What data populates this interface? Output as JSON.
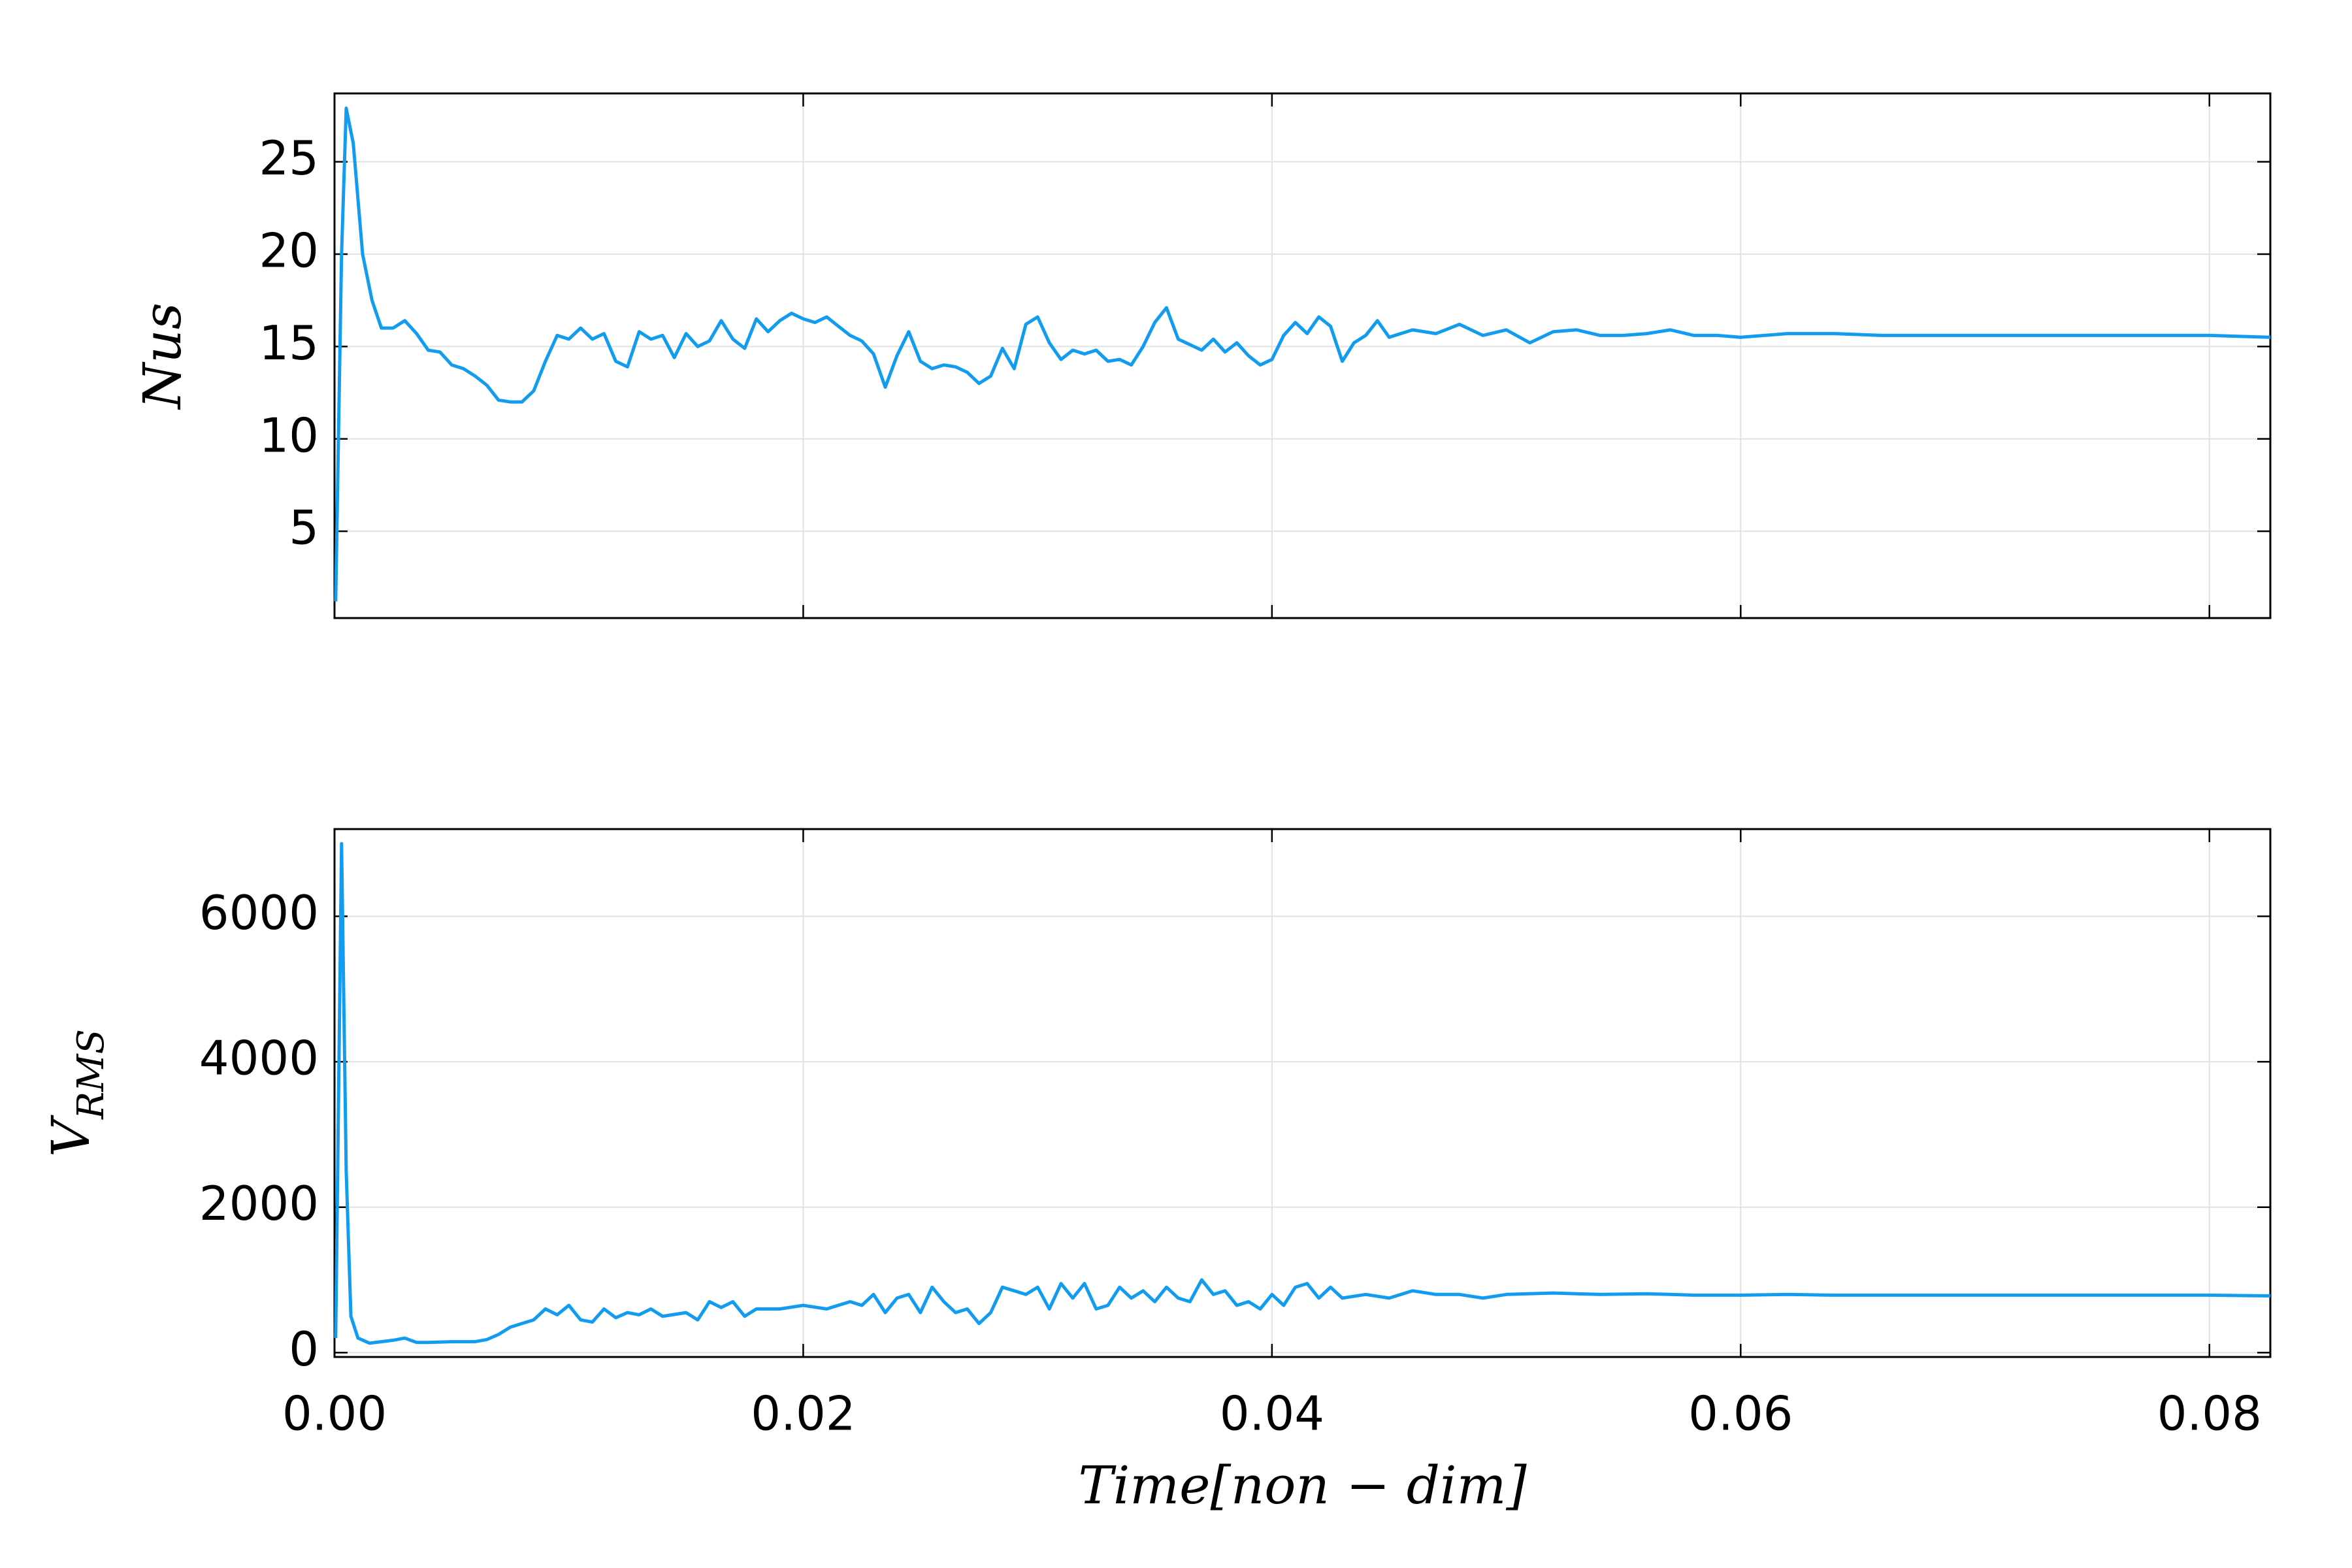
{
  "chart_data": [
    {
      "type": "line",
      "ylabel": "Nus",
      "ylim": [
        0.3,
        28.7
      ],
      "yticks": [
        5,
        10,
        15,
        20,
        25
      ],
      "xlim": [
        0,
        0.0826
      ],
      "xticks": [
        0,
        0.02,
        0.04,
        0.06,
        0.08
      ],
      "show_xtick_labels": false,
      "grid": true,
      "color": "#129cf0",
      "x": [
        5e-05,
        0.0003,
        0.0005,
        0.0008,
        0.0012,
        0.0016,
        0.002,
        0.0025,
        0.003,
        0.0035,
        0.004,
        0.0045,
        0.005,
        0.0055,
        0.006,
        0.0065,
        0.007,
        0.0075,
        0.008,
        0.0085,
        0.009,
        0.0095,
        0.01,
        0.0105,
        0.011,
        0.0115,
        0.012,
        0.0125,
        0.013,
        0.0135,
        0.014,
        0.0145,
        0.015,
        0.0155,
        0.016,
        0.0165,
        0.017,
        0.0175,
        0.018,
        0.0185,
        0.019,
        0.0195,
        0.02,
        0.0205,
        0.021,
        0.0215,
        0.022,
        0.0225,
        0.023,
        0.0235,
        0.024,
        0.0245,
        0.025,
        0.0255,
        0.026,
        0.0265,
        0.027,
        0.0275,
        0.028,
        0.0285,
        0.029,
        0.0295,
        0.03,
        0.0305,
        0.031,
        0.0315,
        0.032,
        0.0325,
        0.033,
        0.0335,
        0.034,
        0.0345,
        0.035,
        0.0355,
        0.036,
        0.0365,
        0.037,
        0.0375,
        0.038,
        0.0385,
        0.039,
        0.0395,
        0.04,
        0.0405,
        0.041,
        0.0415,
        0.042,
        0.0425,
        0.043,
        0.0435,
        0.044,
        0.0445,
        0.045,
        0.046,
        0.047,
        0.048,
        0.049,
        0.05,
        0.051,
        0.052,
        0.053,
        0.054,
        0.055,
        0.056,
        0.057,
        0.058,
        0.059,
        0.06,
        0.062,
        0.064,
        0.066,
        0.068,
        0.07,
        0.072,
        0.074,
        0.076,
        0.078,
        0.08,
        0.0826
      ],
      "values": [
        1.2,
        20,
        27.9,
        26,
        20,
        17.5,
        16,
        16,
        16.4,
        15.7,
        14.8,
        14.7,
        14,
        13.8,
        13.4,
        12.9,
        12.1,
        12,
        12,
        12.6,
        14.2,
        15.6,
        15.4,
        16,
        15.4,
        15.7,
        14.2,
        13.9,
        15.8,
        15.4,
        15.6,
        14.4,
        15.7,
        15,
        15.3,
        16.4,
        15.4,
        14.9,
        16.5,
        15.8,
        16.4,
        16.8,
        16.5,
        16.3,
        16.6,
        16.1,
        15.6,
        15.3,
        14.6,
        12.8,
        14.5,
        15.8,
        14.2,
        13.8,
        14,
        13.9,
        13.6,
        13,
        13.4,
        14.9,
        13.8,
        16.2,
        16.6,
        15.2,
        14.3,
        14.8,
        14.6,
        14.8,
        14.2,
        14.3,
        14,
        15,
        16.3,
        17.1,
        15.4,
        15.1,
        14.8,
        15.4,
        14.7,
        15.2,
        14.5,
        14,
        14.3,
        15.6,
        16.3,
        15.7,
        16.6,
        16.1,
        14.2,
        15.2,
        15.6,
        16.4,
        15.5,
        15.9,
        15.7,
        16.2,
        15.6,
        15.9,
        15.2,
        15.8,
        15.9,
        15.6,
        15.6,
        15.7,
        15.9,
        15.6,
        15.6,
        15.5,
        15.7,
        15.7,
        15.6,
        15.6,
        15.6,
        15.6,
        15.6,
        15.6,
        15.6,
        15.6,
        15.5
      ]
    },
    {
      "type": "line",
      "ylabel": {
        "main": "V",
        "sub": "RMS"
      },
      "xlabel": "Time[non − dim]",
      "ylim": [
        -60,
        7200
      ],
      "yticks": [
        0,
        2000,
        4000,
        6000
      ],
      "xlim": [
        0,
        0.0826
      ],
      "xticks": [
        {
          "value": 0,
          "label": "0.00"
        },
        {
          "value": 0.02,
          "label": "0.02"
        },
        {
          "value": 0.04,
          "label": "0.04"
        },
        {
          "value": 0.06,
          "label": "0.06"
        },
        {
          "value": 0.08,
          "label": "0.08"
        }
      ],
      "show_xtick_labels": true,
      "grid": true,
      "color": "#129cf0",
      "x": [
        5e-05,
        0.0003,
        0.0005,
        0.0007,
        0.001,
        0.0015,
        0.002,
        0.0025,
        0.003,
        0.0035,
        0.004,
        0.005,
        0.006,
        0.0065,
        0.007,
        0.0075,
        0.008,
        0.0085,
        0.009,
        0.0095,
        0.01,
        0.0105,
        0.011,
        0.0115,
        0.012,
        0.0125,
        0.013,
        0.0135,
        0.014,
        0.015,
        0.0155,
        0.016,
        0.0165,
        0.017,
        0.0175,
        0.018,
        0.019,
        0.02,
        0.021,
        0.022,
        0.0225,
        0.023,
        0.0235,
        0.024,
        0.0245,
        0.025,
        0.0255,
        0.026,
        0.0265,
        0.027,
        0.0275,
        0.028,
        0.0285,
        0.029,
        0.0295,
        0.03,
        0.0305,
        0.031,
        0.0315,
        0.032,
        0.0325,
        0.033,
        0.0335,
        0.034,
        0.0345,
        0.035,
        0.0355,
        0.036,
        0.0365,
        0.037,
        0.0375,
        0.038,
        0.0385,
        0.039,
        0.0395,
        0.04,
        0.0405,
        0.041,
        0.0415,
        0.042,
        0.0425,
        0.043,
        0.044,
        0.045,
        0.046,
        0.047,
        0.048,
        0.049,
        0.05,
        0.052,
        0.054,
        0.056,
        0.058,
        0.06,
        0.062,
        0.064,
        0.066,
        0.068,
        0.07,
        0.072,
        0.074,
        0.076,
        0.078,
        0.08,
        0.0826
      ],
      "values": [
        200,
        7000,
        2500,
        500,
        200,
        130,
        150,
        170,
        200,
        140,
        140,
        150,
        150,
        180,
        250,
        350,
        400,
        450,
        600,
        520,
        650,
        450,
        420,
        600,
        480,
        550,
        520,
        600,
        500,
        550,
        450,
        700,
        620,
        700,
        500,
        600,
        600,
        650,
        600,
        700,
        650,
        800,
        550,
        750,
        800,
        550,
        900,
        700,
        550,
        600,
        400,
        550,
        900,
        850,
        800,
        900,
        600,
        950,
        750,
        950,
        600,
        650,
        900,
        750,
        850,
        700,
        900,
        750,
        700,
        1000,
        800,
        850,
        650,
        700,
        600,
        800,
        650,
        900,
        950,
        750,
        900,
        750,
        800,
        750,
        850,
        800,
        800,
        750,
        800,
        820,
        800,
        810,
        790,
        790,
        800,
        790,
        790,
        790,
        790,
        790,
        790,
        790,
        790,
        790,
        780
      ]
    }
  ]
}
